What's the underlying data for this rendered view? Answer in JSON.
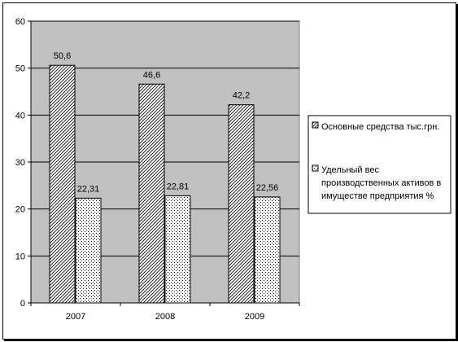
{
  "chart_data": {
    "type": "bar",
    "categories": [
      "2007",
      "2008",
      "2009"
    ],
    "series": [
      {
        "name": "Основные средства тыс.грн.",
        "values": [
          50.6,
          46.6,
          42.2
        ],
        "value_labels": [
          "50,6",
          "46,6",
          "42,2"
        ],
        "pattern": "diagonal-hatch"
      },
      {
        "name": "Удельный вес производственных активов в имуществе предприятия %",
        "values": [
          22.31,
          22.81,
          22.56
        ],
        "value_labels": [
          "22,31",
          "22,81",
          "22,56"
        ],
        "pattern": "dots"
      }
    ],
    "ylim": [
      0,
      60
    ],
    "y_ticks": [
      0,
      10,
      20,
      30,
      40,
      50,
      60
    ],
    "grid": true,
    "legend_position": "right",
    "legend_lines": [
      [
        "Основные средства тыс.грн."
      ],
      [
        "Удельный вес",
        "производственных  активов в",
        "имуществе предприятия %"
      ]
    ],
    "colors": {
      "plot_background": "#c0c0c0",
      "bar_fill": "#ffffff",
      "pattern": "#000000"
    }
  }
}
